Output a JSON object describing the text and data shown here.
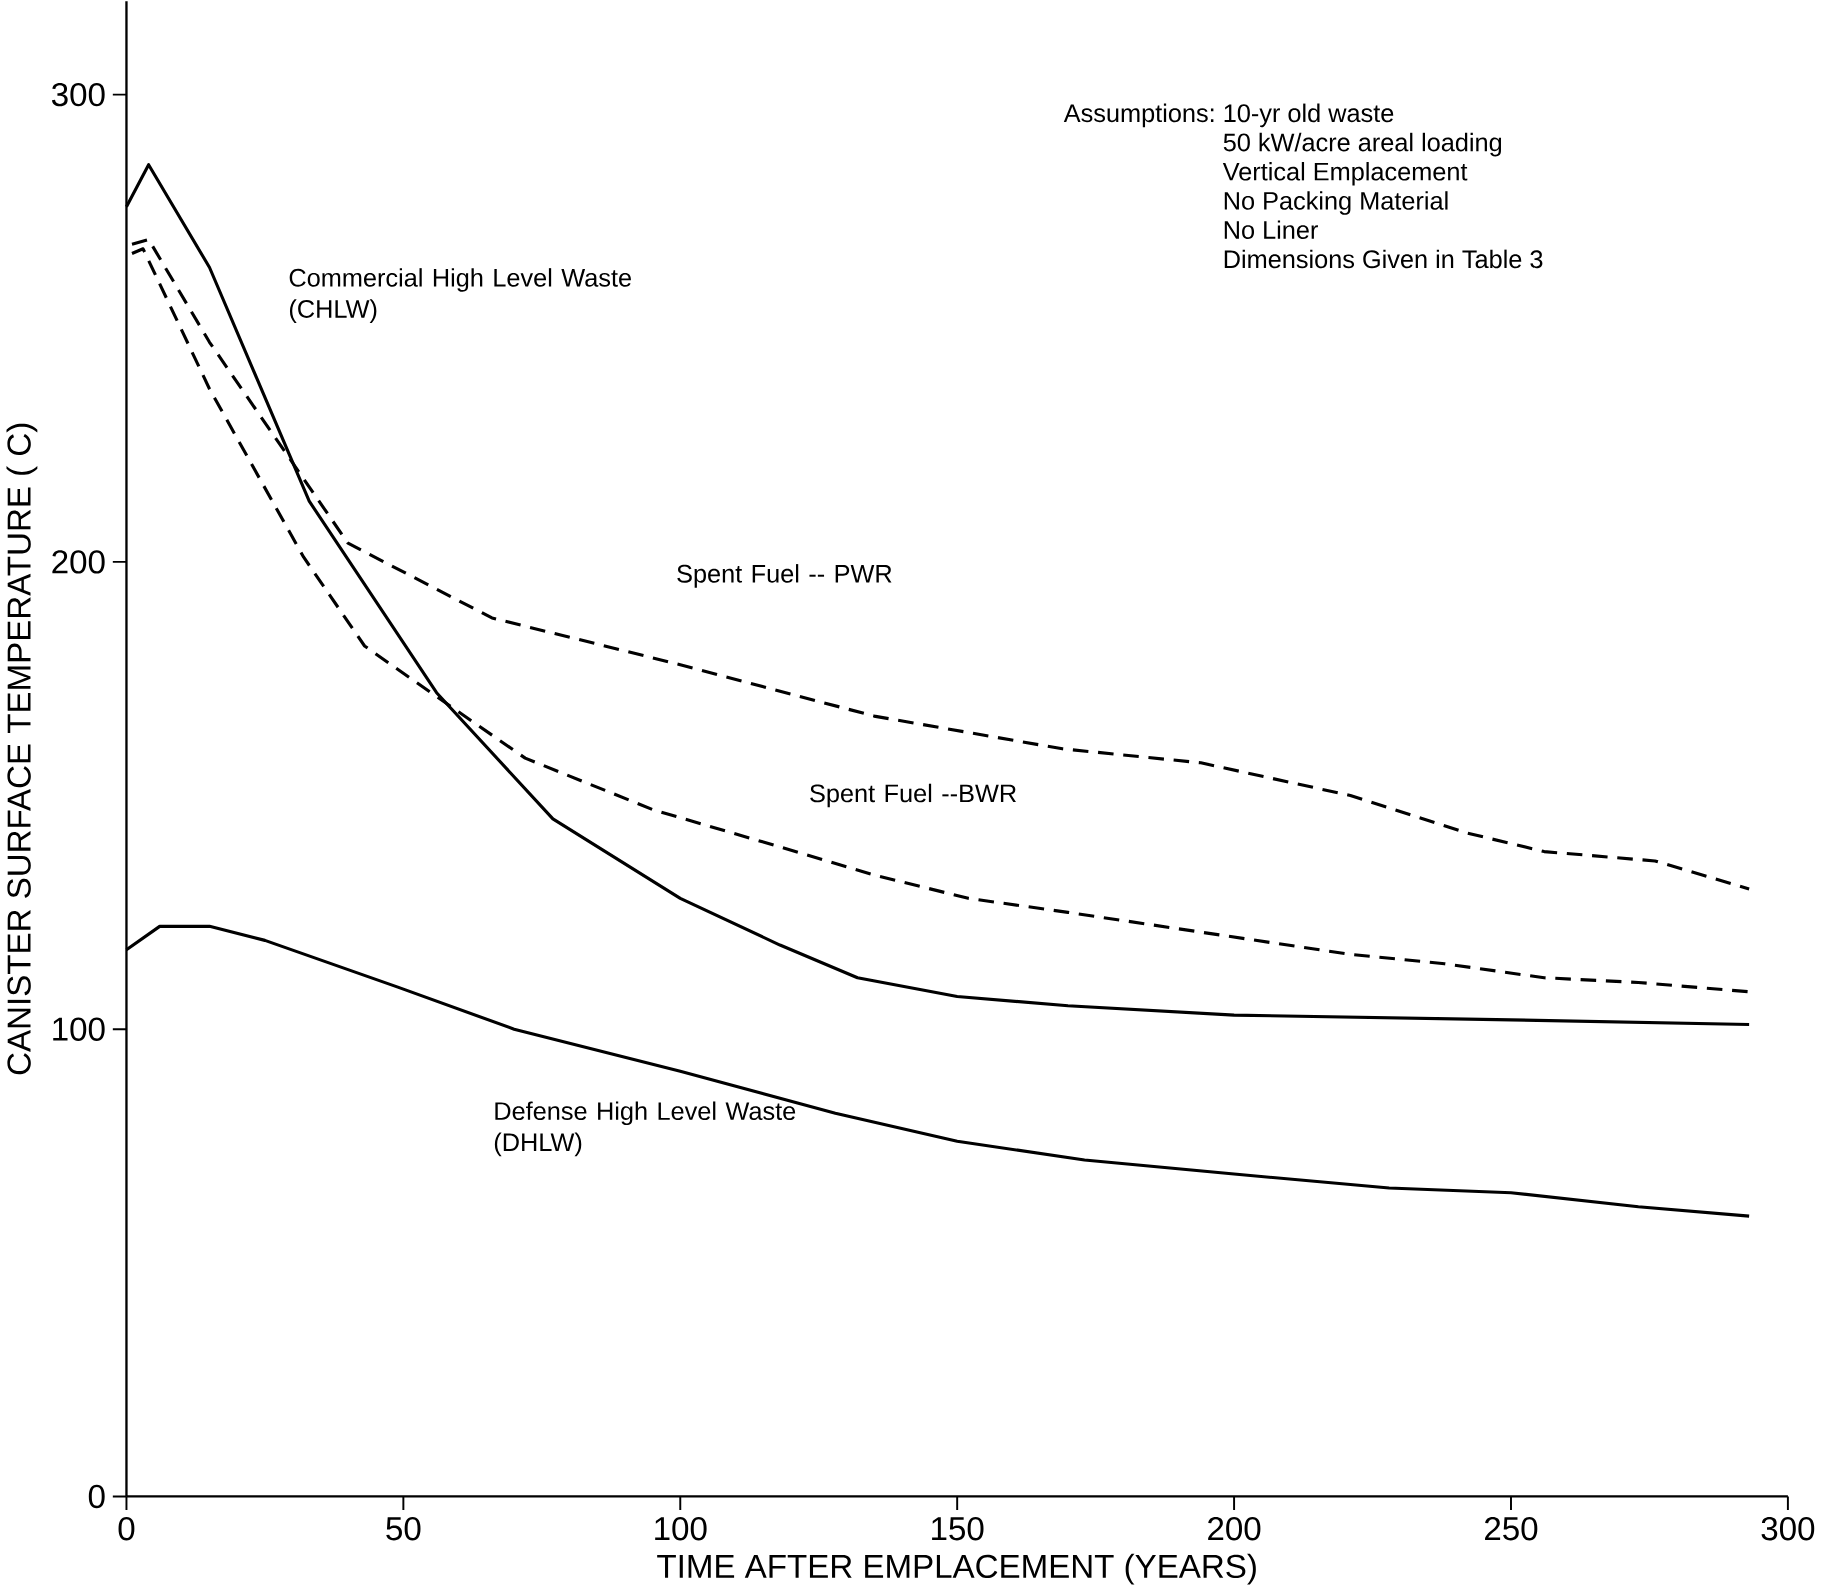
{
  "chart_data": {
    "type": "line",
    "xlabel": "TIME AFTER EMPLACEMENT (YEARS)",
    "ylabel": "CANISTER SURFACE TEMPERATURE ( C)",
    "xlim": [
      0,
      300
    ],
    "ylim": [
      0,
      320
    ],
    "xticks": [
      0,
      50,
      100,
      150,
      200,
      250,
      300
    ],
    "yticks": [
      0,
      100,
      200,
      300
    ],
    "marker": "none",
    "series": [
      {
        "name": "Commercial High Level Waste (CHLW)",
        "color": "#000000",
        "line_style": "solid",
        "x": [
          0,
          4,
          15,
          33,
          56,
          77,
          100,
          118,
          132,
          150,
          170,
          200,
          250,
          293
        ],
        "values": [
          276,
          285,
          263,
          213,
          172,
          145,
          128,
          118,
          111,
          107,
          105,
          103,
          102,
          101
        ]
      },
      {
        "name": "Spent Fuel -- PWR",
        "color": "#000000",
        "line_style": "dashed",
        "x": [
          1,
          4,
          15,
          40,
          66,
          100,
          135,
          169,
          194,
          221,
          242,
          256,
          276,
          293
        ],
        "values": [
          268,
          269,
          247,
          204,
          188,
          178,
          167,
          160,
          157,
          150,
          142,
          138,
          136,
          130
        ]
      },
      {
        "name": "Spent Fuel --BWR",
        "color": "#000000",
        "line_style": "dashed",
        "x": [
          1,
          3,
          15,
          32,
          43,
          55,
          72,
          95,
          118,
          135,
          152,
          170,
          187,
          204,
          221,
          238,
          256,
          273,
          293
        ],
        "values": [
          266,
          267,
          237,
          201,
          182,
          172,
          158,
          147,
          139,
          133,
          128,
          125,
          122,
          119,
          116,
          114,
          111,
          110,
          108
        ]
      },
      {
        "name": "Defense High Level Waste (DHLW)",
        "color": "#000000",
        "line_style": "solid",
        "x": [
          0,
          6,
          15,
          25,
          49,
          70,
          100,
          128,
          150,
          173,
          200,
          228,
          250,
          273,
          293
        ],
        "values": [
          117,
          122,
          122,
          119,
          109,
          100,
          91,
          82,
          76,
          72,
          69,
          66,
          65,
          62,
          60
        ]
      }
    ],
    "annotations": [
      "Assumptions:",
      "10-yr old waste",
      "50 kW/acre areal loading",
      "Vertical Emplacement",
      "No Packing Material",
      "No Liner",
      "Dimensions Given in Table 3"
    ]
  }
}
